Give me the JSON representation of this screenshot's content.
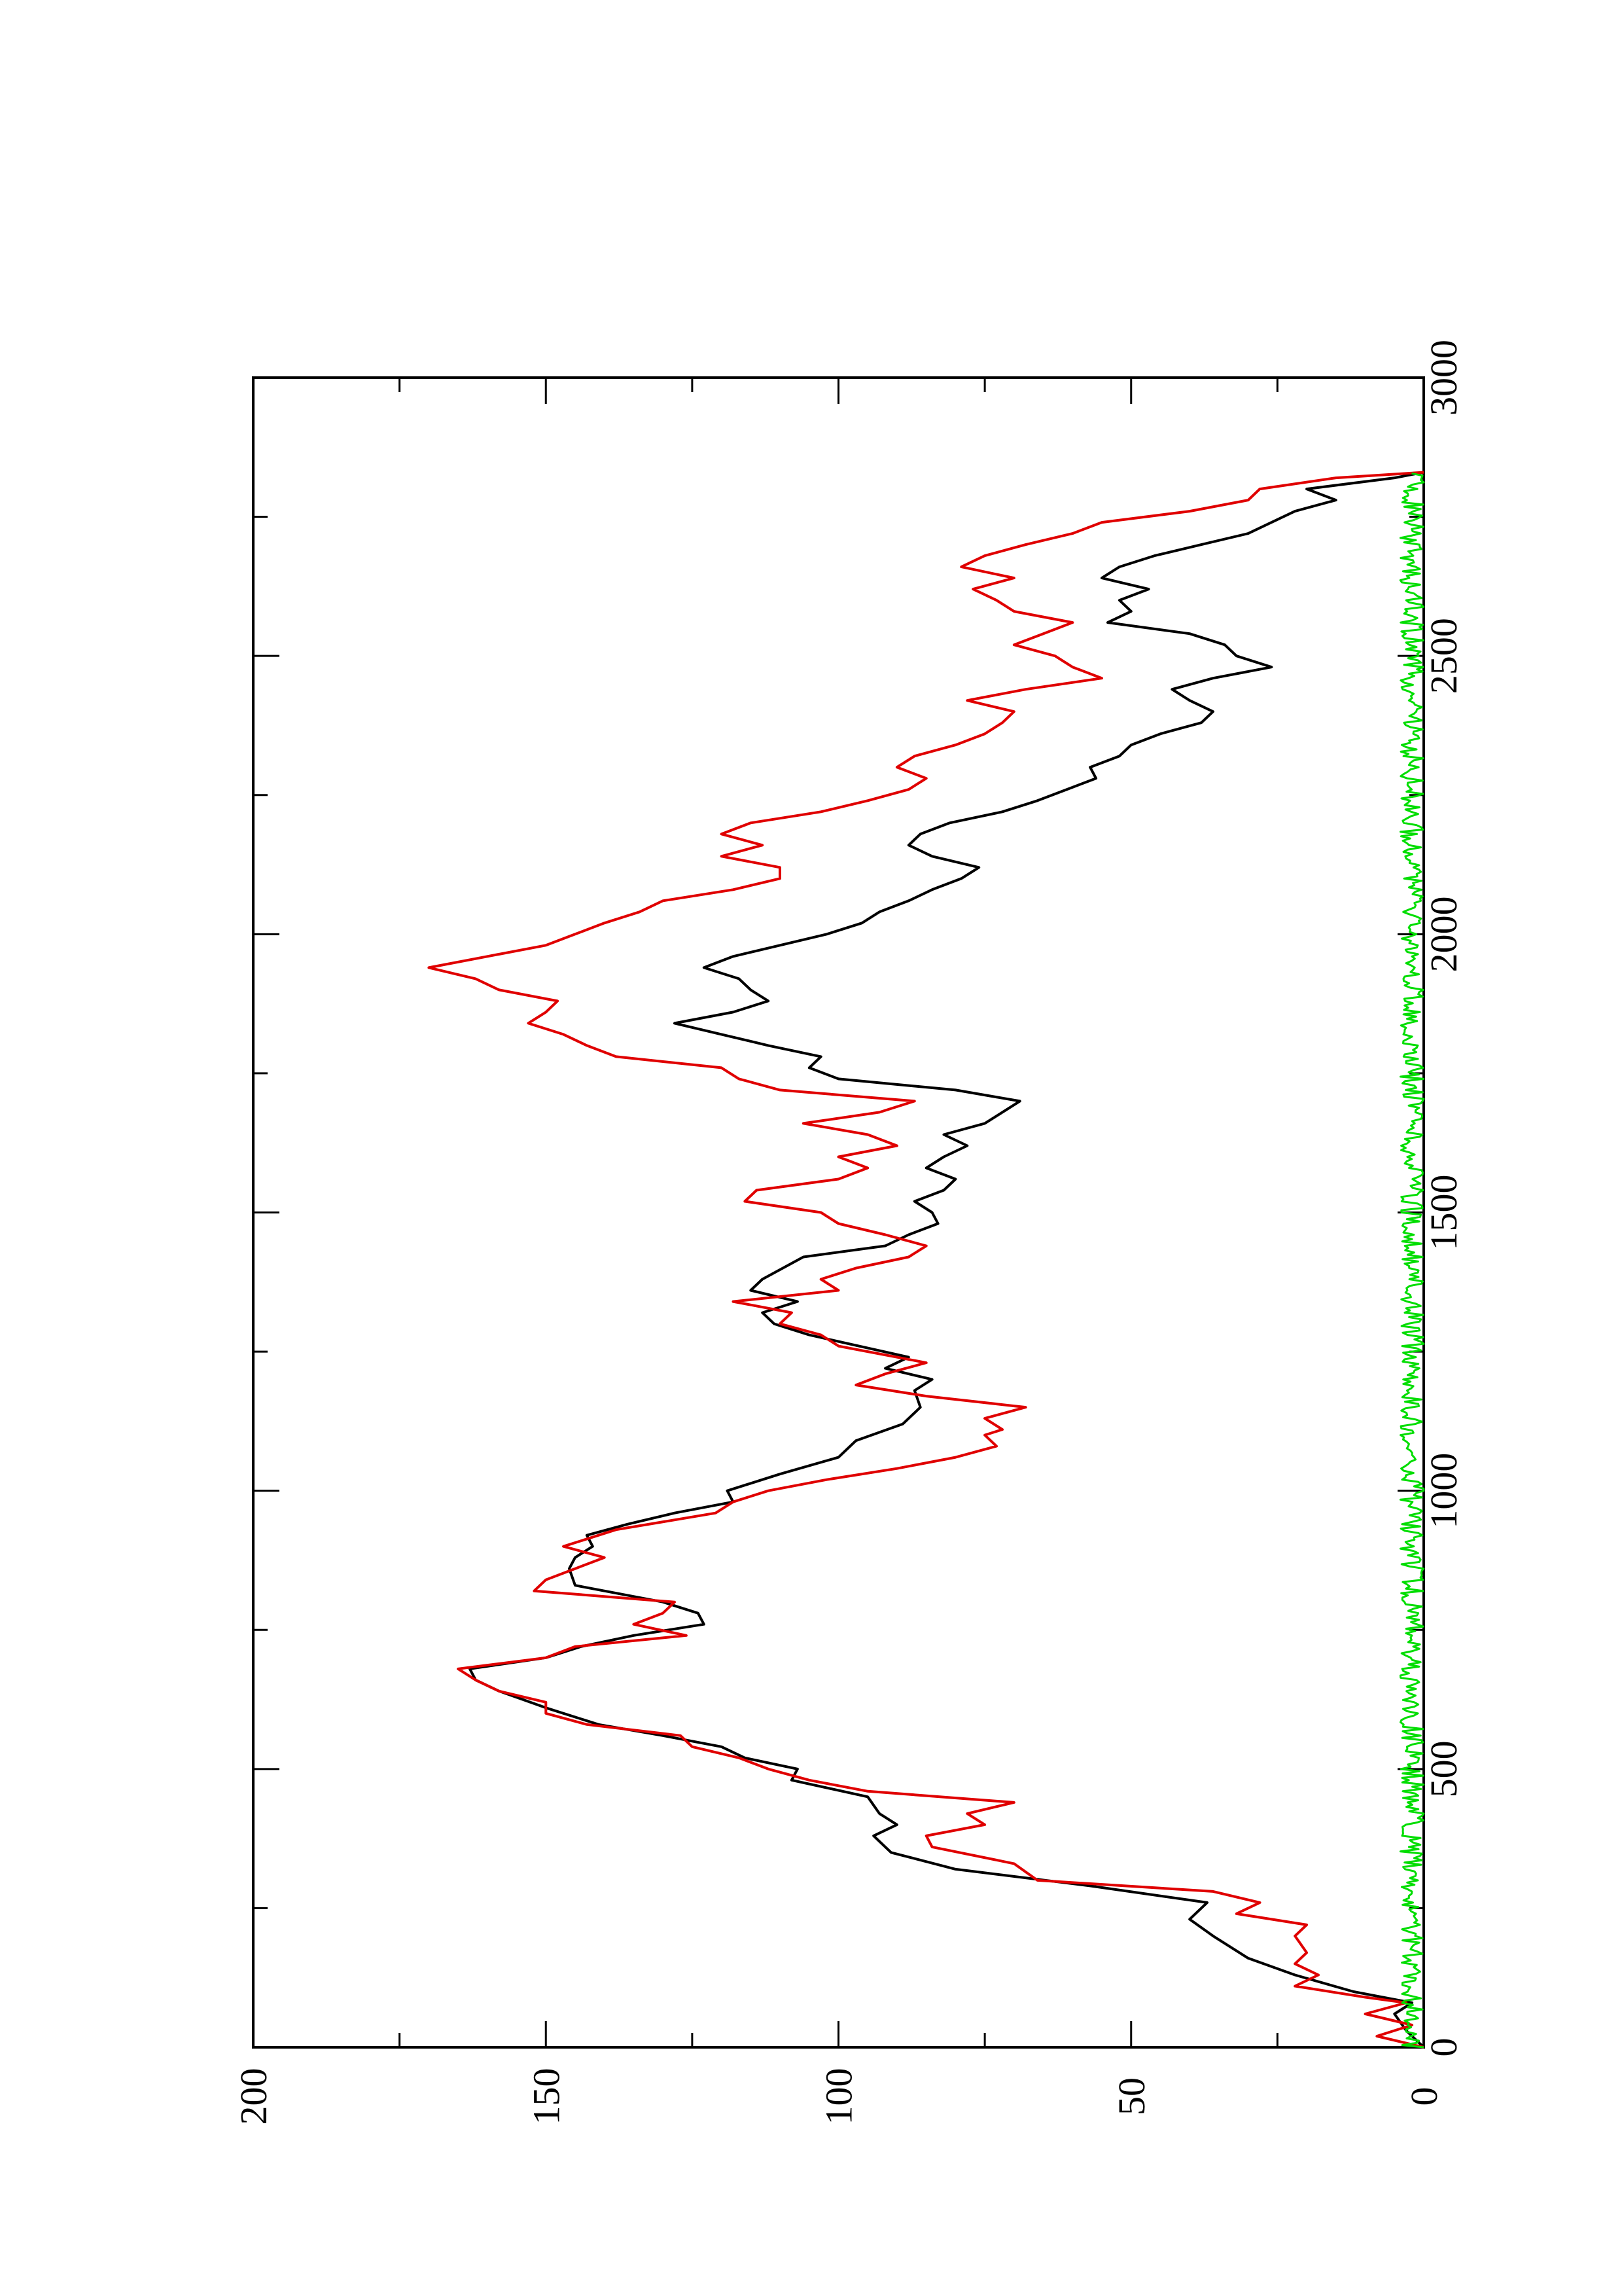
{
  "chart_data": {
    "type": "line",
    "orientation": "rotated-90-ccw",
    "x_axis": {
      "range": [
        0,
        3000
      ],
      "ticks": [
        0,
        500,
        1000,
        1500,
        2000,
        2500,
        3000
      ],
      "minor_step": 250,
      "label": ""
    },
    "y_axis": {
      "range": [
        0,
        200
      ],
      "ticks": [
        0,
        50,
        100,
        150,
        200
      ],
      "minor_step": 25,
      "label": ""
    },
    "grid": false,
    "legend": "none",
    "series": [
      {
        "color": "#000000",
        "points": [
          [
            0,
            0
          ],
          [
            30,
            3
          ],
          [
            60,
            5
          ],
          [
            80,
            2
          ],
          [
            100,
            12
          ],
          [
            130,
            22
          ],
          [
            160,
            30
          ],
          [
            200,
            36
          ],
          [
            230,
            40
          ],
          [
            260,
            37
          ],
          [
            290,
            57
          ],
          [
            320,
            80
          ],
          [
            350,
            91
          ],
          [
            380,
            94
          ],
          [
            400,
            90
          ],
          [
            420,
            93
          ],
          [
            450,
            95
          ],
          [
            480,
            108
          ],
          [
            500,
            107
          ],
          [
            520,
            116
          ],
          [
            540,
            120
          ],
          [
            560,
            130
          ],
          [
            580,
            141
          ],
          [
            610,
            150
          ],
          [
            640,
            158
          ],
          [
            660,
            162
          ],
          [
            680,
            163
          ],
          [
            700,
            150
          ],
          [
            720,
            144
          ],
          [
            740,
            135
          ],
          [
            760,
            123
          ],
          [
            780,
            124
          ],
          [
            800,
            130
          ],
          [
            830,
            145
          ],
          [
            860,
            146
          ],
          [
            880,
            145
          ],
          [
            900,
            142
          ],
          [
            920,
            143
          ],
          [
            940,
            136
          ],
          [
            960,
            128
          ],
          [
            980,
            118
          ],
          [
            1000,
            119
          ],
          [
            1030,
            110
          ],
          [
            1060,
            100
          ],
          [
            1090,
            97
          ],
          [
            1120,
            89
          ],
          [
            1150,
            86
          ],
          [
            1180,
            87
          ],
          [
            1200,
            84
          ],
          [
            1220,
            92
          ],
          [
            1240,
            88
          ],
          [
            1280,
            105
          ],
          [
            1300,
            111
          ],
          [
            1320,
            113
          ],
          [
            1340,
            107
          ],
          [
            1360,
            115
          ],
          [
            1380,
            113
          ],
          [
            1420,
            106
          ],
          [
            1440,
            92
          ],
          [
            1460,
            88
          ],
          [
            1480,
            83
          ],
          [
            1500,
            84
          ],
          [
            1520,
            87
          ],
          [
            1540,
            82
          ],
          [
            1560,
            80
          ],
          [
            1580,
            85
          ],
          [
            1600,
            82
          ],
          [
            1620,
            78
          ],
          [
            1640,
            82
          ],
          [
            1660,
            75
          ],
          [
            1680,
            72
          ],
          [
            1700,
            69
          ],
          [
            1720,
            80
          ],
          [
            1740,
            100
          ],
          [
            1760,
            105
          ],
          [
            1780,
            103
          ],
          [
            1800,
            112
          ],
          [
            1820,
            120
          ],
          [
            1840,
            128
          ],
          [
            1860,
            118
          ],
          [
            1880,
            112
          ],
          [
            1900,
            115
          ],
          [
            1920,
            117
          ],
          [
            1940,
            123
          ],
          [
            1960,
            118
          ],
          [
            1980,
            110
          ],
          [
            2000,
            102
          ],
          [
            2020,
            96
          ],
          [
            2040,
            93
          ],
          [
            2060,
            88
          ],
          [
            2080,
            84
          ],
          [
            2100,
            79
          ],
          [
            2120,
            76
          ],
          [
            2140,
            84
          ],
          [
            2160,
            88
          ],
          [
            2180,
            86
          ],
          [
            2200,
            81
          ],
          [
            2220,
            72
          ],
          [
            2240,
            66
          ],
          [
            2260,
            61
          ],
          [
            2280,
            56
          ],
          [
            2300,
            57
          ],
          [
            2320,
            52
          ],
          [
            2340,
            50
          ],
          [
            2360,
            45
          ],
          [
            2380,
            38
          ],
          [
            2400,
            36
          ],
          [
            2420,
            40
          ],
          [
            2440,
            43
          ],
          [
            2460,
            36
          ],
          [
            2480,
            26
          ],
          [
            2500,
            32
          ],
          [
            2520,
            34
          ],
          [
            2540,
            40
          ],
          [
            2560,
            54
          ],
          [
            2580,
            50
          ],
          [
            2600,
            52
          ],
          [
            2620,
            47
          ],
          [
            2640,
            55
          ],
          [
            2660,
            52
          ],
          [
            2680,
            46
          ],
          [
            2700,
            38
          ],
          [
            2720,
            30
          ],
          [
            2740,
            26
          ],
          [
            2760,
            22
          ],
          [
            2780,
            15
          ],
          [
            2800,
            20
          ],
          [
            2820,
            5
          ],
          [
            2830,
            0
          ]
        ]
      },
      {
        "color": "#e00000",
        "points": [
          [
            0,
            0
          ],
          [
            20,
            8
          ],
          [
            40,
            2
          ],
          [
            60,
            10
          ],
          [
            80,
            3
          ],
          [
            90,
            10
          ],
          [
            110,
            22
          ],
          [
            130,
            18
          ],
          [
            150,
            22
          ],
          [
            170,
            20
          ],
          [
            200,
            22
          ],
          [
            220,
            20
          ],
          [
            240,
            32
          ],
          [
            260,
            28
          ],
          [
            280,
            36
          ],
          [
            300,
            66
          ],
          [
            330,
            70
          ],
          [
            360,
            84
          ],
          [
            380,
            85
          ],
          [
            400,
            75
          ],
          [
            420,
            78
          ],
          [
            440,
            70
          ],
          [
            460,
            95
          ],
          [
            480,
            105
          ],
          [
            500,
            112
          ],
          [
            520,
            117
          ],
          [
            540,
            125
          ],
          [
            560,
            127
          ],
          [
            580,
            143
          ],
          [
            600,
            150
          ],
          [
            620,
            150
          ],
          [
            640,
            158
          ],
          [
            660,
            162
          ],
          [
            680,
            165
          ],
          [
            700,
            150
          ],
          [
            720,
            145
          ],
          [
            740,
            126
          ],
          [
            760,
            135
          ],
          [
            780,
            130
          ],
          [
            800,
            128
          ],
          [
            820,
            152
          ],
          [
            840,
            150
          ],
          [
            860,
            145
          ],
          [
            880,
            140
          ],
          [
            900,
            147
          ],
          [
            930,
            138
          ],
          [
            960,
            121
          ],
          [
            980,
            118
          ],
          [
            1000,
            112
          ],
          [
            1020,
            102
          ],
          [
            1040,
            90
          ],
          [
            1060,
            80
          ],
          [
            1080,
            73
          ],
          [
            1100,
            75
          ],
          [
            1110,
            72
          ],
          [
            1130,
            75
          ],
          [
            1150,
            68
          ],
          [
            1170,
            85
          ],
          [
            1190,
            97
          ],
          [
            1210,
            92
          ],
          [
            1230,
            85
          ],
          [
            1260,
            100
          ],
          [
            1280,
            103
          ],
          [
            1300,
            110
          ],
          [
            1320,
            108
          ],
          [
            1340,
            118
          ],
          [
            1360,
            100
          ],
          [
            1380,
            103
          ],
          [
            1400,
            97
          ],
          [
            1420,
            88
          ],
          [
            1440,
            85
          ],
          [
            1460,
            92
          ],
          [
            1480,
            100
          ],
          [
            1500,
            103
          ],
          [
            1520,
            116
          ],
          [
            1540,
            114
          ],
          [
            1560,
            100
          ],
          [
            1580,
            95
          ],
          [
            1600,
            100
          ],
          [
            1620,
            90
          ],
          [
            1640,
            95
          ],
          [
            1660,
            106
          ],
          [
            1680,
            93
          ],
          [
            1700,
            87
          ],
          [
            1720,
            110
          ],
          [
            1740,
            117
          ],
          [
            1760,
            120
          ],
          [
            1780,
            138
          ],
          [
            1800,
            143
          ],
          [
            1820,
            147
          ],
          [
            1840,
            153
          ],
          [
            1860,
            150
          ],
          [
            1880,
            148
          ],
          [
            1900,
            158
          ],
          [
            1920,
            162
          ],
          [
            1940,
            170
          ],
          [
            1960,
            160
          ],
          [
            1980,
            150
          ],
          [
            2000,
            145
          ],
          [
            2020,
            140
          ],
          [
            2040,
            134
          ],
          [
            2060,
            130
          ],
          [
            2080,
            118
          ],
          [
            2100,
            110
          ],
          [
            2120,
            110
          ],
          [
            2140,
            120
          ],
          [
            2160,
            113
          ],
          [
            2180,
            120
          ],
          [
            2200,
            115
          ],
          [
            2220,
            103
          ],
          [
            2240,
            95
          ],
          [
            2260,
            88
          ],
          [
            2280,
            85
          ],
          [
            2300,
            90
          ],
          [
            2320,
            87
          ],
          [
            2340,
            80
          ],
          [
            2360,
            75
          ],
          [
            2380,
            72
          ],
          [
            2400,
            70
          ],
          [
            2420,
            78
          ],
          [
            2440,
            68
          ],
          [
            2460,
            55
          ],
          [
            2480,
            60
          ],
          [
            2500,
            63
          ],
          [
            2520,
            70
          ],
          [
            2540,
            65
          ],
          [
            2560,
            60
          ],
          [
            2580,
            70
          ],
          [
            2600,
            73
          ],
          [
            2620,
            77
          ],
          [
            2640,
            70
          ],
          [
            2660,
            79
          ],
          [
            2680,
            75
          ],
          [
            2700,
            68
          ],
          [
            2720,
            60
          ],
          [
            2740,
            55
          ],
          [
            2760,
            40
          ],
          [
            2780,
            30
          ],
          [
            2800,
            28
          ],
          [
            2820,
            15
          ],
          [
            2830,
            0
          ]
        ]
      },
      {
        "color": "#00dd00",
        "noise_amplitude": 4,
        "x_range": [
          0,
          2830
        ]
      }
    ]
  }
}
